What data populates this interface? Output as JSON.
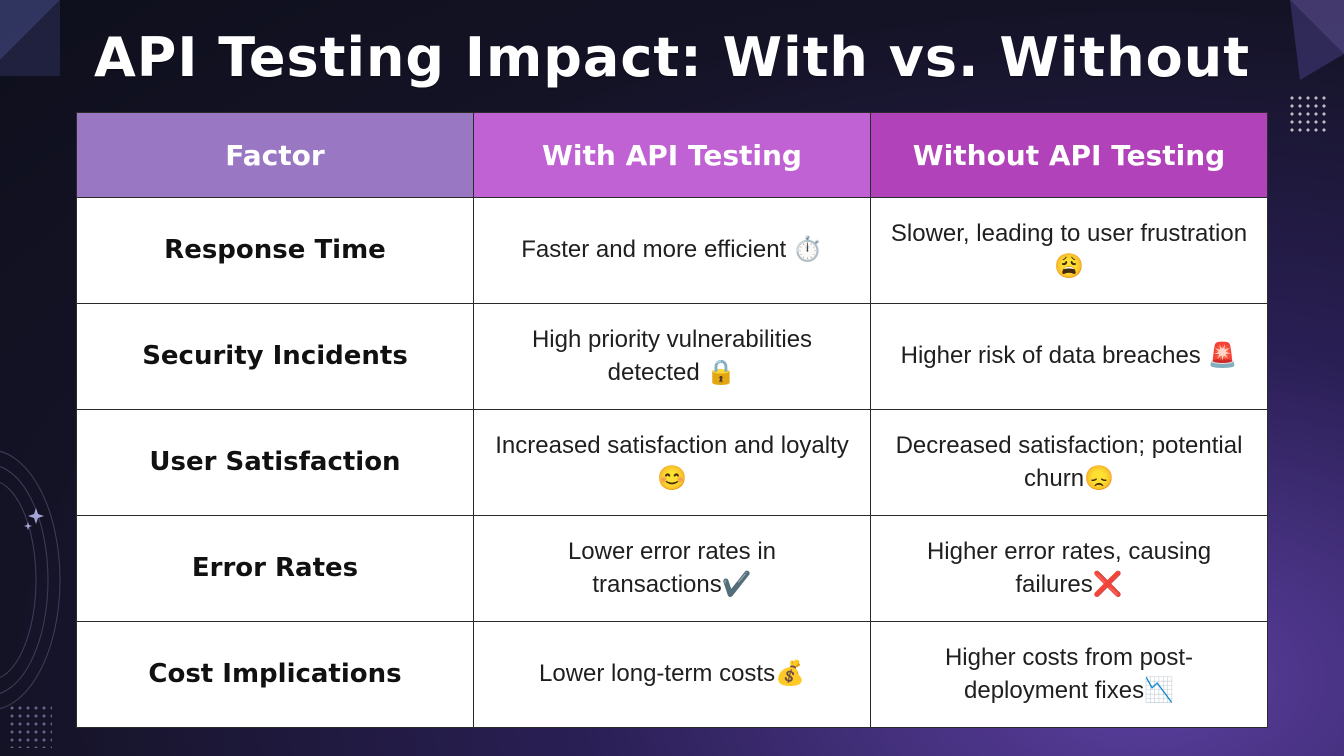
{
  "title": "API Testing Impact: With vs. Without",
  "table": {
    "headers": {
      "factor": "Factor",
      "with": "With API Testing",
      "without": "Without API Testing"
    },
    "rows": [
      {
        "factor": "Response Time",
        "with": "Faster and more efficient",
        "with_emoji": "⏱️",
        "without": "Slower, leading to user frustration",
        "without_emoji": "😩"
      },
      {
        "factor": "Security Incidents",
        "with": "High priority vulnerabilities detected",
        "with_emoji": "🔒",
        "without": "Higher risk of data breaches",
        "without_emoji": "🚨"
      },
      {
        "factor": "User Satisfaction",
        "with": "Increased satisfaction and loyalty",
        "with_emoji": "😊",
        "without": "Decreased satisfaction; potential churn",
        "without_emoji": "😞"
      },
      {
        "factor": "Error Rates",
        "with": "Lower error rates in transactions",
        "with_emoji": "✔️",
        "without": "Higher error rates, causing failures",
        "without_emoji": "❌"
      },
      {
        "factor": "Cost Implications",
        "with": "Lower long-term costs",
        "with_emoji": "💰",
        "without": "Higher costs from post-deployment fixes",
        "without_emoji": "📉"
      }
    ]
  }
}
